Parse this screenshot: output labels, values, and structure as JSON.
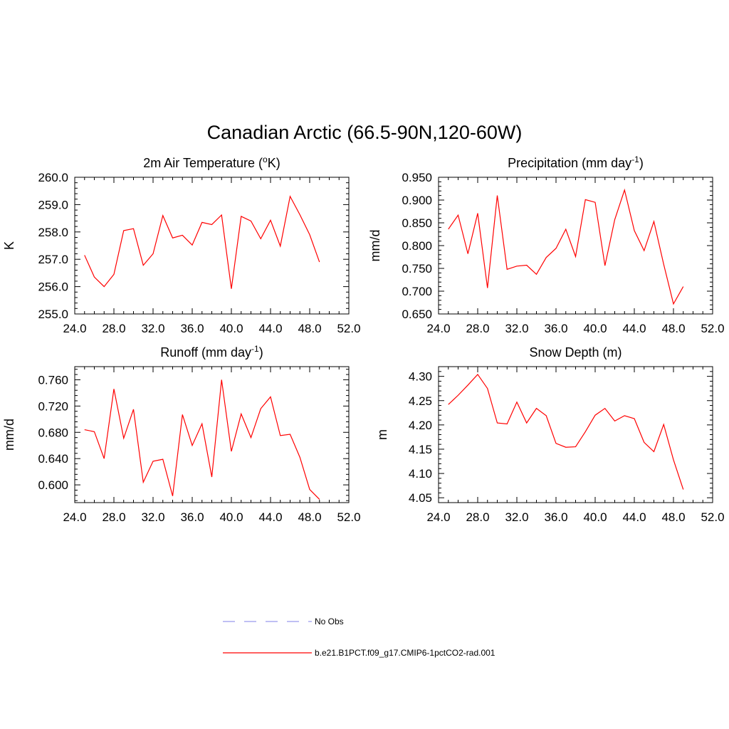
{
  "title": "Canadian Arctic (66.5-90N,120-60W)",
  "colors": {
    "model": "#ff0000",
    "obs": "#9999ee",
    "axis": "#000000"
  },
  "legend": [
    {
      "label": "No Obs",
      "style": "dashed",
      "color": "#9999ee"
    },
    {
      "label": "b.e21.B1PCT.f09_g17.CMIP6-1pctCO2-rad.001",
      "style": "solid",
      "color": "#ff0000"
    }
  ],
  "chart_data": [
    {
      "type": "line",
      "title": "2m Air Temperature (",
      "title_sup": "o",
      "title_suffix": "K)",
      "ylabel": "K",
      "xlim": [
        24,
        52
      ],
      "ylim": [
        255,
        260
      ],
      "xticks": [
        "24.0",
        "28.0",
        "32.0",
        "36.0",
        "40.0",
        "44.0",
        "48.0",
        "52.0"
      ],
      "yticks": [
        "255.0",
        "256.0",
        "257.0",
        "258.0",
        "259.0",
        "260.0"
      ],
      "x": [
        25,
        26,
        27,
        28,
        29,
        30,
        31,
        32,
        33,
        34,
        35,
        36,
        37,
        38,
        39,
        40,
        41,
        42,
        43,
        44,
        45,
        46,
        47,
        48,
        49
      ],
      "series": [
        {
          "name": "b.e21.B1PCT.f09_g17.CMIP6-1pctCO2-rad.001",
          "values": [
            257.15,
            256.35,
            256.0,
            256.45,
            258.05,
            258.12,
            256.78,
            257.2,
            258.6,
            257.78,
            257.88,
            257.52,
            258.35,
            258.27,
            258.62,
            255.92,
            258.57,
            258.4,
            257.75,
            258.43,
            257.48,
            259.3,
            258.63,
            257.9,
            256.9
          ]
        }
      ]
    },
    {
      "type": "line",
      "title": "Precipitation (mm day",
      "title_sup": "-1",
      "title_suffix": ")",
      "ylabel": "mm/d",
      "xlim": [
        24,
        52
      ],
      "ylim": [
        0.65,
        0.95
      ],
      "xticks": [
        "24.0",
        "28.0",
        "32.0",
        "36.0",
        "40.0",
        "44.0",
        "48.0",
        "52.0"
      ],
      "yticks": [
        "0.650",
        "0.700",
        "0.750",
        "0.800",
        "0.850",
        "0.900",
        "0.950"
      ],
      "x": [
        25,
        26,
        27,
        28,
        29,
        30,
        31,
        32,
        33,
        34,
        35,
        36,
        37,
        38,
        39,
        40,
        41,
        42,
        43,
        44,
        45,
        46,
        47,
        48,
        49
      ],
      "series": [
        {
          "name": "b.e21.B1PCT.f09_g17.CMIP6-1pctCO2-rad.001",
          "values": [
            0.836,
            0.867,
            0.782,
            0.871,
            0.707,
            0.91,
            0.748,
            0.755,
            0.757,
            0.737,
            0.774,
            0.794,
            0.836,
            0.776,
            0.901,
            0.895,
            0.756,
            0.857,
            0.922,
            0.833,
            0.789,
            0.853,
            0.759,
            0.672,
            0.71
          ]
        }
      ]
    },
    {
      "type": "line",
      "title": "Runoff (mm day",
      "title_sup": "-1",
      "title_suffix": ")",
      "ylabel": "mm/d",
      "xlim": [
        24,
        52
      ],
      "ylim": [
        0.573,
        0.78
      ],
      "xticks": [
        "24.0",
        "28.0",
        "32.0",
        "36.0",
        "40.0",
        "44.0",
        "48.0",
        "52.0"
      ],
      "yticks": [
        "0.600",
        "0.640",
        "0.680",
        "0.720",
        "0.760"
      ],
      "ytick_values": [
        0.6,
        0.64,
        0.68,
        0.72,
        0.76
      ],
      "x": [
        25,
        26,
        27,
        28,
        29,
        30,
        31,
        32,
        33,
        34,
        35,
        36,
        37,
        38,
        39,
        40,
        41,
        42,
        43,
        44,
        45,
        46,
        47,
        48,
        49
      ],
      "series": [
        {
          "name": "b.e21.B1PCT.f09_g17.CMIP6-1pctCO2-rad.001",
          "values": [
            0.684,
            0.681,
            0.64,
            0.746,
            0.671,
            0.715,
            0.604,
            0.636,
            0.639,
            0.583,
            0.707,
            0.66,
            0.693,
            0.612,
            0.76,
            0.651,
            0.708,
            0.672,
            0.716,
            0.734,
            0.675,
            0.677,
            0.642,
            0.593,
            0.578
          ]
        }
      ]
    },
    {
      "type": "line",
      "title": "Snow Depth (m)",
      "title_sup": "",
      "title_suffix": "",
      "ylabel": "m",
      "xlim": [
        24,
        52
      ],
      "ylim": [
        4.04,
        4.32
      ],
      "xticks": [
        "24.0",
        "28.0",
        "32.0",
        "36.0",
        "40.0",
        "44.0",
        "48.0",
        "52.0"
      ],
      "yticks": [
        "4.05",
        "4.10",
        "4.15",
        "4.20",
        "4.25",
        "4.30"
      ],
      "ytick_values": [
        4.05,
        4.1,
        4.15,
        4.2,
        4.25,
        4.3
      ],
      "x": [
        25,
        26,
        27,
        28,
        29,
        30,
        31,
        32,
        33,
        34,
        35,
        36,
        37,
        38,
        39,
        40,
        41,
        42,
        43,
        44,
        45,
        46,
        47,
        48,
        49
      ],
      "series": [
        {
          "name": "b.e21.B1PCT.f09_g17.CMIP6-1pctCO2-rad.001",
          "values": [
            4.242,
            4.261,
            4.282,
            4.304,
            4.275,
            4.204,
            4.202,
            4.247,
            4.204,
            4.234,
            4.219,
            4.162,
            4.154,
            4.155,
            4.186,
            4.22,
            4.234,
            4.208,
            4.219,
            4.213,
            4.164,
            4.145,
            4.201,
            4.128,
            4.067
          ]
        }
      ]
    }
  ]
}
